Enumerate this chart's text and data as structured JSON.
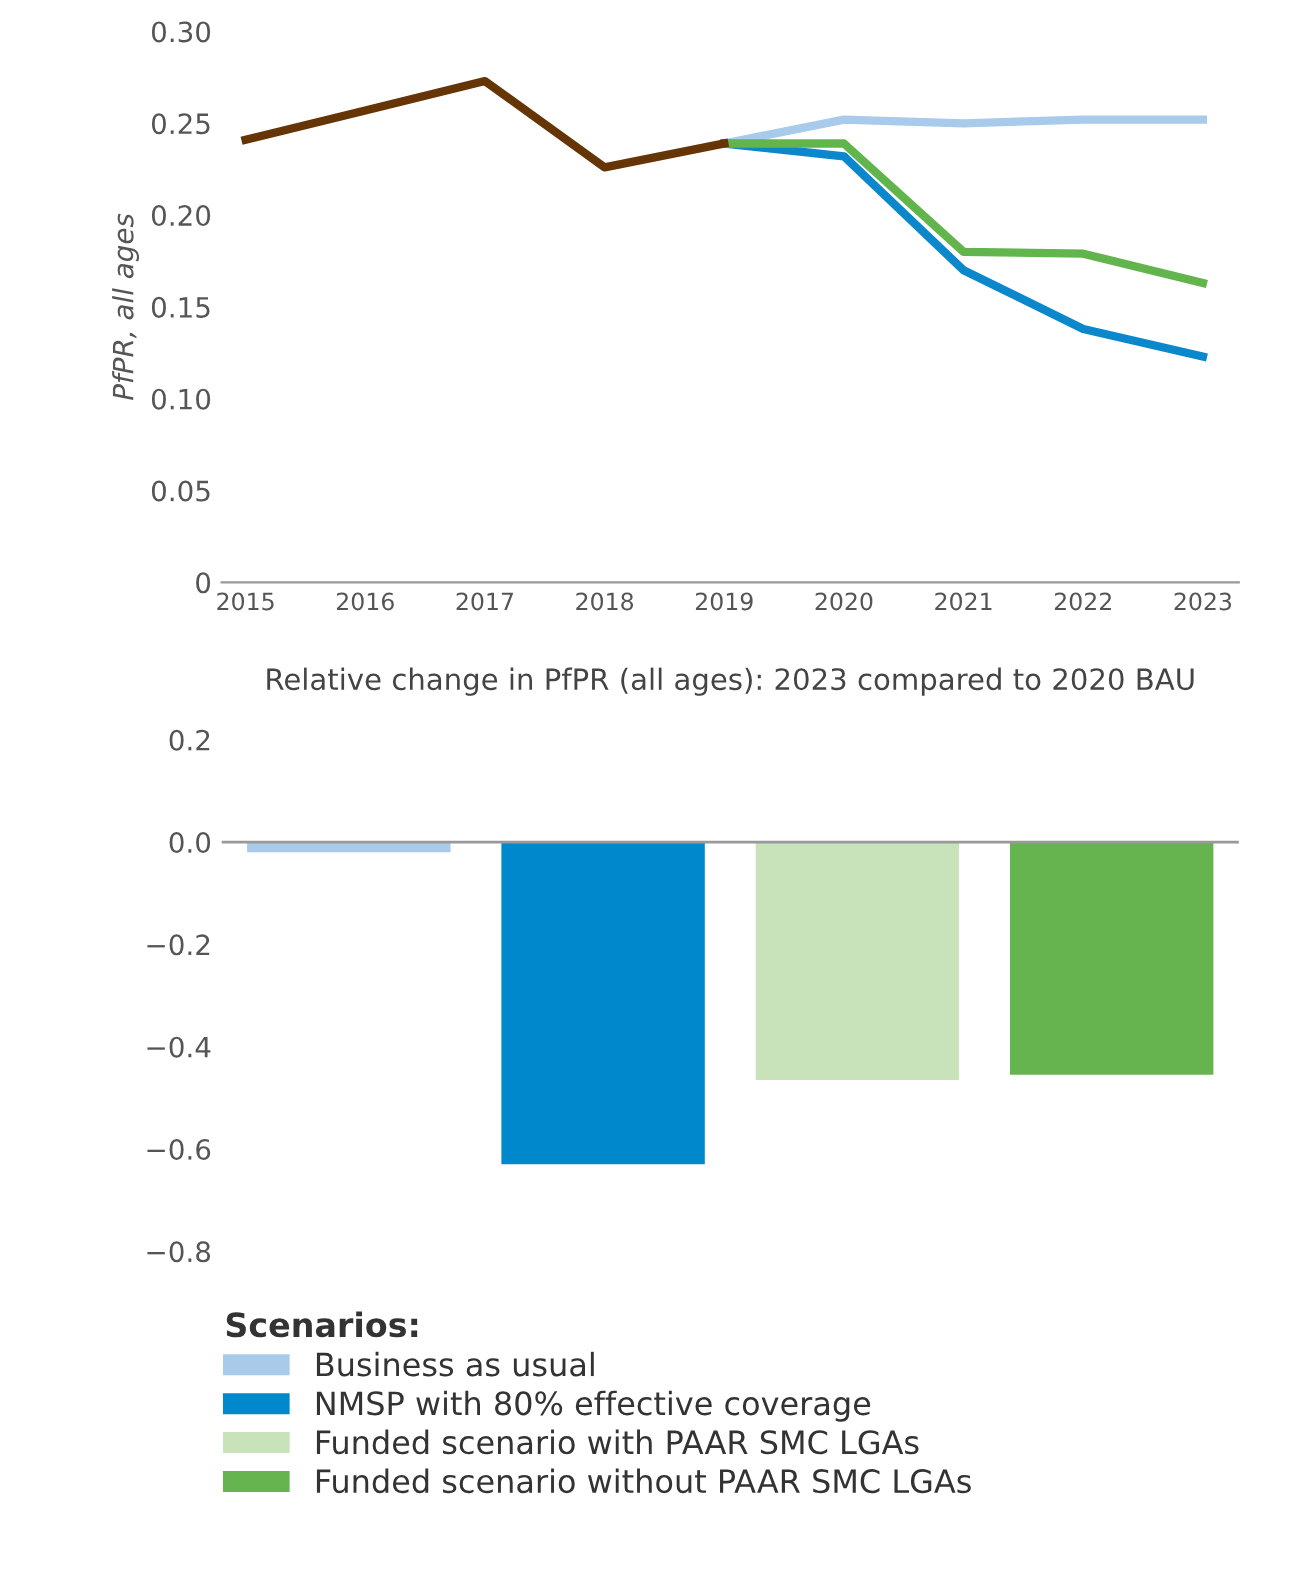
{
  "chart_data": [
    {
      "type": "line",
      "ylabel": "PfPR, all ages",
      "xlim": [
        2014.8,
        2023.3
      ],
      "xticks": [
        2015,
        2016,
        2017,
        2018,
        2019,
        2020,
        2021,
        2022,
        2023
      ],
      "ylim": [
        0,
        0.3
      ],
      "yticks": [
        {
          "value": 0,
          "label": "0"
        },
        {
          "value": 0.05,
          "label": "0.05"
        },
        {
          "value": 0.1,
          "label": "0.10"
        },
        {
          "value": 0.15,
          "label": "0.15"
        },
        {
          "value": 0.2,
          "label": "0.20"
        },
        {
          "value": 0.25,
          "label": "0.25"
        },
        {
          "value": 0.3,
          "label": "0.30"
        }
      ],
      "grid": false,
      "legend": false,
      "series": [
        {
          "color": "#a9cbeb",
          "x": [
            2019,
            2020,
            2021,
            2022,
            2023
          ],
          "values": [
            0.239,
            0.252,
            0.25,
            0.252,
            0.252
          ]
        },
        {
          "color": "#0b87cc",
          "x": [
            2019,
            2020,
            2021,
            2022,
            2023
          ],
          "values": [
            0.239,
            0.232,
            0.17,
            0.138,
            0.123
          ]
        },
        {
          "color": "#62b44d",
          "x": [
            2019,
            2020,
            2021,
            2022,
            2023
          ],
          "values": [
            0.239,
            0.239,
            0.18,
            0.179,
            0.163
          ]
        },
        {
          "color": "#653505",
          "x": [
            2015,
            2016,
            2017,
            2018,
            2019
          ],
          "values": [
            0.241,
            0.257,
            0.273,
            0.226,
            0.239
          ]
        }
      ]
    },
    {
      "type": "bar",
      "title": "Relative change in PfPR (all ages): 2023 compared to 2020 BAU",
      "categories": [
        null
      ],
      "ylim": [
        -0.8,
        0.2
      ],
      "yticks": [
        {
          "value": 0.2,
          "label": "0.2"
        },
        {
          "value": 0,
          "label": "0.0"
        },
        {
          "value": -0.2,
          "label": "−0.2"
        },
        {
          "value": -0.4,
          "label": "−0.4"
        },
        {
          "value": -0.6,
          "label": "−0.6"
        },
        {
          "value": -0.8,
          "label": "−0.8"
        }
      ],
      "grid": false,
      "ref_lines": [
        {
          "axis": "y",
          "value": 0,
          "color": "#999999"
        }
      ],
      "legend": "bottom",
      "legend_title": "Scenarios:",
      "series": [
        {
          "name": "Business as usual",
          "color": "#a9cbeb",
          "values": [
            -0.02
          ]
        },
        {
          "name": "NMSP with 80% effective coverage",
          "color": "#0088cc",
          "values": [
            -0.63
          ]
        },
        {
          "name": "Funded scenario with PAAR SMC LGAs",
          "color": "#c8e2b9",
          "values": [
            -0.465
          ]
        },
        {
          "name": "Funded scenario without PAAR SMC LGAs",
          "color": "#66b450",
          "values": [
            -0.455
          ]
        }
      ]
    }
  ]
}
